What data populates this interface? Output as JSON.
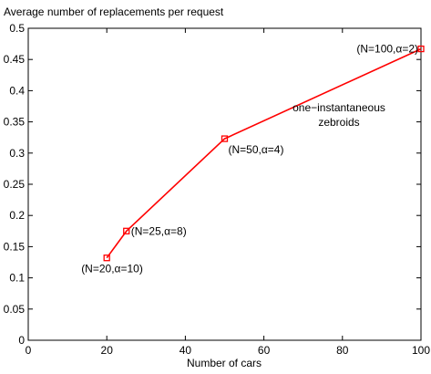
{
  "chart_data": {
    "type": "line",
    "title": "Average number of replacements per request",
    "xlabel": "Number of cars",
    "ylabel": "",
    "xlim": [
      0,
      100
    ],
    "ylim": [
      0,
      0.5
    ],
    "xticks": [
      "0",
      "20",
      "40",
      "60",
      "80",
      "100"
    ],
    "yticks": [
      "0",
      "0.05",
      "0.1",
      "0.15",
      "0.2",
      "0.25",
      "0.3",
      "0.35",
      "0.4",
      "0.45",
      "0.5"
    ],
    "grid": false,
    "series": [
      {
        "color": "#ff0000",
        "marker": "square",
        "x": [
          20,
          25,
          50,
          100
        ],
        "y": [
          0.132,
          0.175,
          0.323,
          0.467
        ]
      }
    ],
    "point_labels": [
      "(N=20,α=10)",
      "(N=25,α=8)",
      "(N=50,α=4)",
      "(N=100,α=2)"
    ],
    "annotation": {
      "line1": "one−instantaneous",
      "line2": "zebroids"
    }
  }
}
